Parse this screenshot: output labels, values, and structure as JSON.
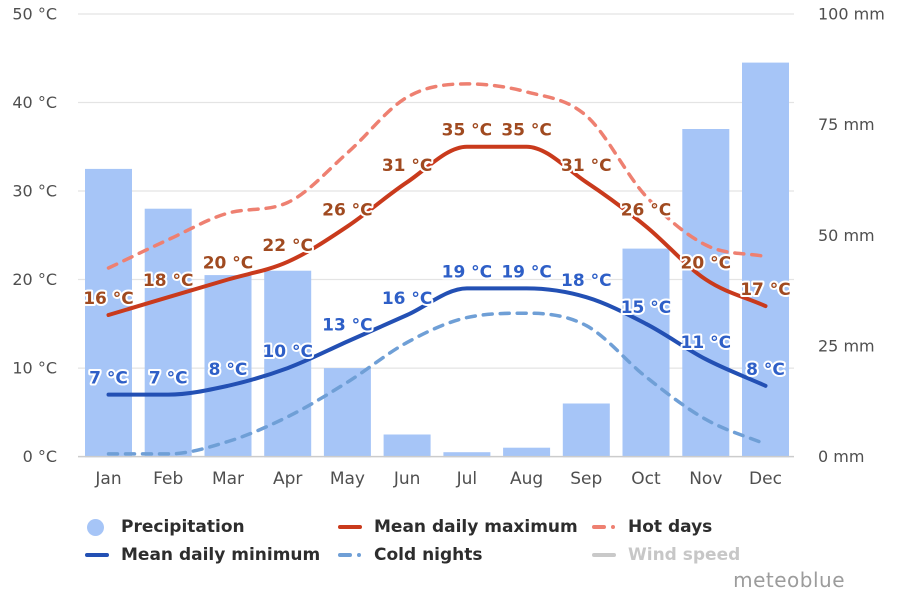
{
  "watermark": "meteoblue",
  "colors": {
    "bar": "#a6c5f7",
    "max_line": "#c93a1c",
    "max_label": "#a04a20",
    "min_line": "#2350b4",
    "min_label": "#2e5fc7",
    "hot_days": "#ee8071",
    "cold_nights": "#6f9fd6",
    "wind_disabled": "#c9c9c9",
    "gridline": "#e4e4e4",
    "baseline": "#cccccc",
    "axis_text": "#4f4f4f",
    "legend_text": "#2d2d2d",
    "legend_disabled_text": "#c7c7c7",
    "halo": "#ffffff"
  },
  "legend": {
    "items": [
      {
        "label": "Precipitation",
        "marker": "circle",
        "color": "#a6c5f7",
        "enabled": true
      },
      {
        "label": "Mean daily maximum",
        "marker": "line",
        "color": "#c93a1c",
        "enabled": true
      },
      {
        "label": "Hot days",
        "marker": "dashed",
        "color": "#ee8071",
        "enabled": true
      },
      {
        "label": "Mean daily minimum",
        "marker": "line",
        "color": "#2350b4",
        "enabled": true
      },
      {
        "label": "Cold nights",
        "marker": "dashed",
        "color": "#6f9fd6",
        "enabled": true
      },
      {
        "label": "Wind speed",
        "marker": "line",
        "color": "#c9c9c9",
        "enabled": false
      }
    ]
  },
  "chart_data": {
    "type": "bar",
    "categories": [
      "Jan",
      "Feb",
      "Mar",
      "Apr",
      "May",
      "Jun",
      "Jul",
      "Aug",
      "Sep",
      "Oct",
      "Nov",
      "Dec"
    ],
    "series": [
      {
        "name": "Precipitation",
        "type": "bar",
        "axis": "right",
        "unit": "mm",
        "values": [
          65,
          56,
          41,
          42,
          20,
          5,
          1,
          2,
          12,
          47,
          74,
          89
        ]
      },
      {
        "name": "Mean daily maximum",
        "type": "line",
        "axis": "left",
        "unit": "°C",
        "labeled": true,
        "values": [
          16,
          18,
          20,
          22,
          26,
          31,
          35,
          35,
          31,
          26,
          20,
          17
        ]
      },
      {
        "name": "Mean daily minimum",
        "type": "line",
        "axis": "left",
        "unit": "°C",
        "labeled": true,
        "values": [
          7,
          7,
          8,
          10,
          13,
          16,
          19,
          19,
          18,
          15,
          11,
          8
        ]
      },
      {
        "name": "Hot days",
        "type": "dashed-line",
        "axis": "left",
        "unit": "°C-equivalent",
        "labeled": false,
        "values": [
          21.3,
          24.5,
          27.5,
          28.7,
          34.3,
          40.6,
          42.1,
          41.2,
          38.5,
          29.4,
          23.9,
          22.6
        ]
      },
      {
        "name": "Cold nights",
        "type": "dashed-line",
        "axis": "left",
        "unit": "°C-equivalent",
        "labeled": false,
        "values": [
          0.3,
          0.3,
          1.7,
          4.5,
          8.4,
          12.9,
          15.7,
          16.2,
          14.8,
          9.0,
          4.2,
          1.4
        ]
      }
    ],
    "left_axis": {
      "unit": "°C",
      "ticks": [
        0,
        10,
        20,
        30,
        40,
        50
      ],
      "range": [
        0,
        50
      ]
    },
    "right_axis": {
      "unit": "mm",
      "ticks": [
        0,
        25,
        50,
        75,
        100
      ],
      "range": [
        0,
        100
      ]
    },
    "grid": true,
    "legend_position": "bottom",
    "title": ""
  }
}
